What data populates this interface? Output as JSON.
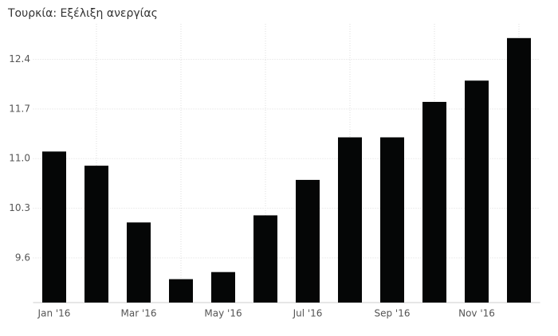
{
  "chart_data": {
    "type": "bar",
    "title": "Τουρκία: Εξέλιξη ανεργίας",
    "categories": [
      "Jan '16",
      null,
      "Mar '16",
      null,
      "May '16",
      null,
      "Jul '16",
      null,
      "Sep '16",
      null,
      "Nov '16",
      null
    ],
    "values": [
      11.1,
      10.9,
      10.1,
      9.3,
      9.4,
      10.2,
      10.7,
      11.3,
      11.3,
      11.8,
      12.1,
      12.7
    ],
    "color": "#050606",
    "ylim": [
      8.97,
      12.9
    ],
    "yticks": [
      9.6,
      10.3,
      {
        "value": 11,
        "label": "11.0"
      },
      11.7,
      12.4
    ],
    "grid": true
  }
}
